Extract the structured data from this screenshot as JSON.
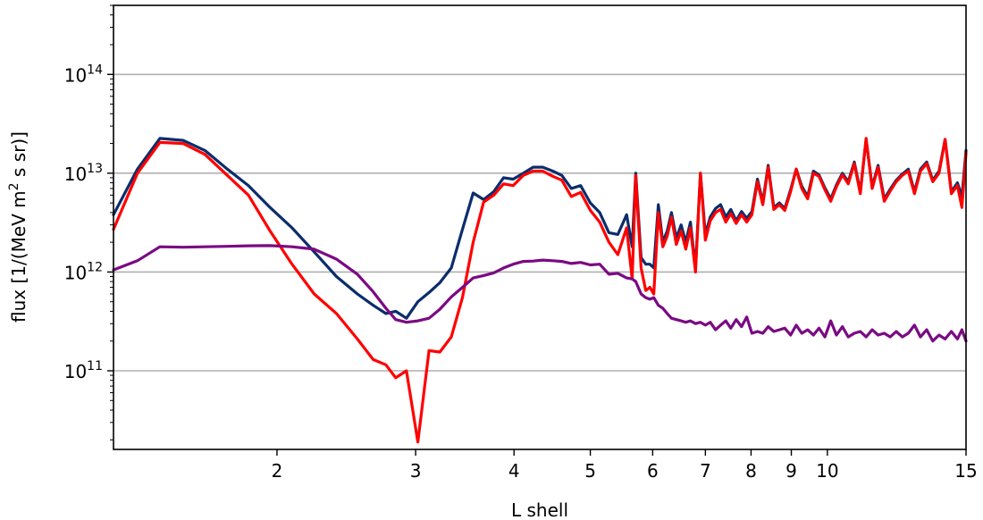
{
  "chart_data": {
    "type": "line",
    "title": "",
    "xlabel": "L shell",
    "ylabel_prefix": "flux [1/(MeV m",
    "ylabel_sup": "2",
    "ylabel_suffix": " s sr)]",
    "xscale": "log",
    "yscale": "log",
    "xlim": [
      1.24,
      15
    ],
    "ylim": [
      16000000000.0,
      500000000000000.0
    ],
    "grid": "y-major",
    "legend": "none",
    "x_ticks": [
      {
        "value": 2,
        "label": "2"
      },
      {
        "value": 3,
        "label": "3"
      },
      {
        "value": 4,
        "label": "4"
      },
      {
        "value": 5,
        "label": "5"
      },
      {
        "value": 6,
        "label": "6"
      },
      {
        "value": 7,
        "label": "7"
      },
      {
        "value": 8,
        "label": "8"
      },
      {
        "value": 9,
        "label": "9"
      },
      {
        "value": 10,
        "label": "10"
      },
      {
        "value": 15,
        "label": "15"
      }
    ],
    "y_ticks": [
      {
        "value": 100000000000.0,
        "base": "10",
        "exp": "11"
      },
      {
        "value": 1000000000000.0,
        "base": "10",
        "exp": "12"
      },
      {
        "value": 10000000000000.0,
        "base": "10",
        "exp": "13"
      },
      {
        "value": 100000000000000.0,
        "base": "10",
        "exp": "14"
      }
    ],
    "series": [
      {
        "color": "#0b2d6b",
        "x": [
          1.24,
          1.33,
          1.42,
          1.52,
          1.62,
          1.73,
          1.84,
          1.96,
          2.09,
          2.23,
          2.38,
          2.53,
          2.65,
          2.75,
          2.83,
          2.92,
          3.02,
          3.12,
          3.22,
          3.33,
          3.44,
          3.55,
          3.66,
          3.77,
          3.88,
          3.99,
          4.11,
          4.23,
          4.35,
          4.48,
          4.6,
          4.73,
          4.86,
          5.0,
          5.14,
          5.28,
          5.42,
          5.56,
          5.65,
          5.71,
          5.8,
          5.88,
          5.95,
          6.02,
          6.1,
          6.18,
          6.26,
          6.34,
          6.43,
          6.52,
          6.61,
          6.7,
          6.8,
          6.9,
          7.0,
          7.1,
          7.21,
          7.32,
          7.43,
          7.54,
          7.66,
          7.78,
          7.9,
          8.02,
          8.15,
          8.28,
          8.41,
          8.55,
          8.69,
          8.83,
          8.98,
          9.13,
          9.28,
          9.44,
          9.6,
          9.76,
          9.93,
          10.1,
          10.27,
          10.45,
          10.63,
          10.82,
          11.01,
          11.2,
          11.4,
          11.6,
          11.81,
          12.02,
          12.23,
          12.45,
          12.67,
          12.9,
          13.13,
          13.37,
          13.61,
          13.86,
          14.11,
          14.37,
          14.63,
          14.82,
          15.0
        ],
        "y": [
          3800000000000.0,
          11000000000000.0,
          22500000000000.0,
          21500000000000.0,
          17000000000000.0,
          11000000000000.0,
          7500000000000.0,
          4500000000000.0,
          2800000000000.0,
          1600000000000.0,
          900000000000.0,
          600000000000.0,
          460000000000.0,
          380000000000.0,
          400000000000.0,
          340000000000.0,
          500000000000.0,
          620000000000.0,
          780000000000.0,
          1100000000000.0,
          2700000000000.0,
          6300000000000.0,
          5400000000000.0,
          6500000000000.0,
          9000000000000.0,
          8700000000000.0,
          10000000000000.0,
          11500000000000.0,
          11500000000000.0,
          10500000000000.0,
          9500000000000.0,
          7000000000000.0,
          7500000000000.0,
          5000000000000.0,
          4000000000000.0,
          2500000000000.0,
          2400000000000.0,
          3800000000000.0,
          1800000000000.0,
          10000000000000.0,
          1400000000000.0,
          1200000000000.0,
          1200000000000.0,
          1100000000000.0,
          4800000000000.0,
          2000000000000.0,
          2600000000000.0,
          4000000000000.0,
          2200000000000.0,
          3000000000000.0,
          2000000000000.0,
          3200000000000.0,
          1100000000000.0,
          10000000000000.0,
          2400000000000.0,
          3600000000000.0,
          4400000000000.0,
          4800000000000.0,
          3600000000000.0,
          4300000000000.0,
          3300000000000.0,
          4100000000000.0,
          3500000000000.0,
          4100000000000.0,
          8700000000000.0,
          5100000000000.0,
          12000000000000.0,
          4500000000000.0,
          5000000000000.0,
          4400000000000.0,
          6800000000000.0,
          11000000000000.0,
          7400000000000.0,
          5800000000000.0,
          10500000000000.0,
          9600000000000.0,
          7100000000000.0,
          5500000000000.0,
          7600000000000.0,
          10000000000000.0,
          8200000000000.0,
          13000000000000.0,
          6500000000000.0,
          22000000000000.0,
          7300000000000.0,
          12000000000000.0,
          5500000000000.0,
          6900000000000.0,
          8500000000000.0,
          9800000000000.0,
          11000000000000.0,
          6500000000000.0,
          11000000000000.0,
          13000000000000.0,
          8500000000000.0,
          10500000000000.0,
          22000000000000.0,
          6500000000000.0,
          8000000000000.0,
          5800000000000.0,
          17000000000000.0
        ]
      },
      {
        "color": "#ff0000",
        "x": [
          1.24,
          1.33,
          1.42,
          1.52,
          1.62,
          1.73,
          1.84,
          1.96,
          2.09,
          2.23,
          2.38,
          2.53,
          2.65,
          2.75,
          2.83,
          2.92,
          3.02,
          3.12,
          3.22,
          3.33,
          3.44,
          3.55,
          3.66,
          3.77,
          3.88,
          3.99,
          4.11,
          4.23,
          4.35,
          4.48,
          4.6,
          4.73,
          4.86,
          5.0,
          5.14,
          5.28,
          5.42,
          5.56,
          5.65,
          5.71,
          5.8,
          5.88,
          5.95,
          6.02,
          6.1,
          6.18,
          6.26,
          6.34,
          6.43,
          6.52,
          6.61,
          6.7,
          6.8,
          6.9,
          7.0,
          7.1,
          7.21,
          7.32,
          7.43,
          7.54,
          7.66,
          7.78,
          7.9,
          8.02,
          8.15,
          8.28,
          8.41,
          8.55,
          8.69,
          8.83,
          8.98,
          9.13,
          9.28,
          9.44,
          9.6,
          9.76,
          9.93,
          10.1,
          10.27,
          10.45,
          10.63,
          10.82,
          11.01,
          11.2,
          11.4,
          11.6,
          11.81,
          12.02,
          12.23,
          12.45,
          12.67,
          12.9,
          13.13,
          13.37,
          13.61,
          13.86,
          14.11,
          14.37,
          14.63,
          14.82,
          15.0
        ],
        "y": [
          2700000000000.0,
          10000000000000.0,
          20500000000000.0,
          20000000000000.0,
          15500000000000.0,
          9500000000000.0,
          6000000000000.0,
          2600000000000.0,
          1200000000000.0,
          600000000000.0,
          380000000000.0,
          210000000000.0,
          130000000000.0,
          115000000000.0,
          85000000000.0,
          100000000000.0,
          19000000000.0,
          160000000000.0,
          155000000000.0,
          220000000000.0,
          550000000000.0,
          2000000000000.0,
          5100000000000.0,
          6000000000000.0,
          7800000000000.0,
          7500000000000.0,
          9500000000000.0,
          10500000000000.0,
          10500000000000.0,
          9300000000000.0,
          8500000000000.0,
          5800000000000.0,
          6400000000000.0,
          4200000000000.0,
          3200000000000.0,
          2000000000000.0,
          1500000000000.0,
          2800000000000.0,
          850000000000.0,
          9500000000000.0,
          1100000000000.0,
          650000000000.0,
          700000000000.0,
          600000000000.0,
          4000000000000.0,
          1800000000000.0,
          2300000000000.0,
          3600000000000.0,
          1900000000000.0,
          2600000000000.0,
          1700000000000.0,
          2800000000000.0,
          1000000000000.0,
          10000000000000.0,
          2100000000000.0,
          3300000000000.0,
          4000000000000.0,
          4300000000000.0,
          3200000000000.0,
          3900000000000.0,
          3100000000000.0,
          3800000000000.0,
          3200000000000.0,
          3800000000000.0,
          8200000000000.0,
          4800000000000.0,
          11500000000000.0,
          4300000000000.0,
          4800000000000.0,
          4200000000000.0,
          6500000000000.0,
          11000000000000.0,
          7000000000000.0,
          5500000000000.0,
          10000000000000.0,
          9300000000000.0,
          6800000000000.0,
          5200000000000.0,
          7300000000000.0,
          9600000000000.0,
          7800000000000.0,
          12500000000000.0,
          6200000000000.0,
          22500000000000.0,
          7000000000000.0,
          11500000000000.0,
          5200000000000.0,
          6600000000000.0,
          8200000000000.0,
          9500000000000.0,
          10500000000000.0,
          6200000000000.0,
          10500000000000.0,
          12500000000000.0,
          8200000000000.0,
          10000000000000.0,
          22000000000000.0,
          6200000000000.0,
          7500000000000.0,
          4500000000000.0,
          16000000000000.0
        ]
      },
      {
        "color": "#7b0a83",
        "x": [
          1.24,
          1.33,
          1.42,
          1.52,
          1.62,
          1.73,
          1.84,
          1.96,
          2.09,
          2.23,
          2.38,
          2.53,
          2.65,
          2.75,
          2.83,
          2.92,
          3.02,
          3.12,
          3.22,
          3.33,
          3.44,
          3.55,
          3.66,
          3.77,
          3.88,
          3.99,
          4.11,
          4.23,
          4.35,
          4.48,
          4.6,
          4.73,
          4.86,
          5.0,
          5.14,
          5.28,
          5.42,
          5.56,
          5.65,
          5.71,
          5.8,
          5.88,
          5.95,
          6.02,
          6.1,
          6.18,
          6.26,
          6.34,
          6.43,
          6.52,
          6.61,
          6.7,
          6.8,
          6.9,
          7.0,
          7.1,
          7.21,
          7.32,
          7.43,
          7.54,
          7.66,
          7.78,
          7.9,
          8.02,
          8.15,
          8.28,
          8.41,
          8.55,
          8.69,
          8.83,
          8.98,
          9.13,
          9.28,
          9.44,
          9.6,
          9.76,
          9.93,
          10.1,
          10.27,
          10.45,
          10.63,
          10.82,
          11.01,
          11.2,
          11.4,
          11.6,
          11.81,
          12.02,
          12.23,
          12.45,
          12.67,
          12.9,
          13.13,
          13.37,
          13.61,
          13.86,
          14.11,
          14.37,
          14.63,
          14.82,
          15.0
        ],
        "y": [
          1050000000000.0,
          1300000000000.0,
          1800000000000.0,
          1780000000000.0,
          1800000000000.0,
          1820000000000.0,
          1840000000000.0,
          1850000000000.0,
          1800000000000.0,
          1700000000000.0,
          1350000000000.0,
          950000000000.0,
          630000000000.0,
          430000000000.0,
          330000000000.0,
          310000000000.0,
          320000000000.0,
          340000000000.0,
          420000000000.0,
          560000000000.0,
          700000000000.0,
          870000000000.0,
          920000000000.0,
          980000000000.0,
          1100000000000.0,
          1200000000000.0,
          1280000000000.0,
          1290000000000.0,
          1320000000000.0,
          1300000000000.0,
          1280000000000.0,
          1220000000000.0,
          1250000000000.0,
          1180000000000.0,
          1200000000000.0,
          950000000000.0,
          970000000000.0,
          870000000000.0,
          850000000000.0,
          800000000000.0,
          600000000000.0,
          550000000000.0,
          530000000000.0,
          550000000000.0,
          460000000000.0,
          430000000000.0,
          380000000000.0,
          340000000000.0,
          330000000000.0,
          320000000000.0,
          310000000000.0,
          320000000000.0,
          300000000000.0,
          310000000000.0,
          290000000000.0,
          310000000000.0,
          260000000000.0,
          290000000000.0,
          320000000000.0,
          270000000000.0,
          330000000000.0,
          280000000000.0,
          350000000000.0,
          240000000000.0,
          250000000000.0,
          240000000000.0,
          280000000000.0,
          250000000000.0,
          260000000000.0,
          270000000000.0,
          230000000000.0,
          290000000000.0,
          240000000000.0,
          260000000000.0,
          230000000000.0,
          270000000000.0,
          220000000000.0,
          320000000000.0,
          230000000000.0,
          280000000000.0,
          220000000000.0,
          240000000000.0,
          250000000000.0,
          220000000000.0,
          260000000000.0,
          230000000000.0,
          240000000000.0,
          220000000000.0,
          250000000000.0,
          220000000000.0,
          240000000000.0,
          290000000000.0,
          220000000000.0,
          260000000000.0,
          200000000000.0,
          230000000000.0,
          210000000000.0,
          250000000000.0,
          210000000000.0,
          260000000000.0,
          200000000000.0
        ]
      }
    ]
  }
}
